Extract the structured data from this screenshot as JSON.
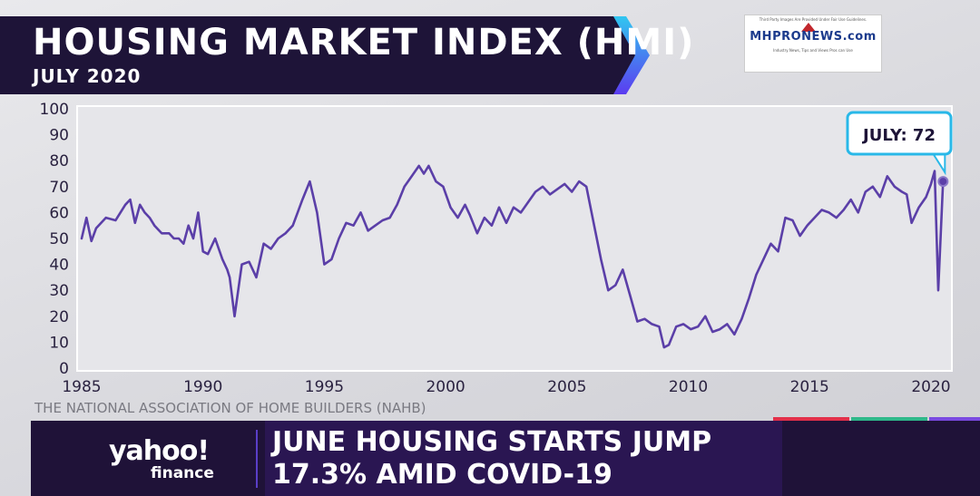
{
  "banner": {
    "title": "HOUSING MARKET INDEX (HMI)",
    "subtitle": "JULY 2020"
  },
  "watermark": {
    "fine_print": "Third Party Images Are Provided Under Fair Use Guidelines.",
    "logo_text": "MHPRONEWS.com",
    "tagline": "Industry News, Tips and Views Pros can Use"
  },
  "chart_data": {
    "type": "line",
    "title": "HOUSING MARKET INDEX (HMI)",
    "subtitle": "JULY 2020",
    "xlabel": "",
    "ylabel": "",
    "xlim": [
      1985,
      2020.6
    ],
    "ylim": [
      0,
      100
    ],
    "y_ticks": [
      0,
      10,
      20,
      30,
      40,
      50,
      60,
      70,
      80,
      90,
      100
    ],
    "x_ticks": [
      1985,
      1990,
      1995,
      2000,
      2005,
      2010,
      2015,
      2020
    ],
    "grid": false,
    "line_color": "#5b3fa8",
    "series": [
      {
        "x": [
          1985.0,
          1985.2,
          1985.4,
          1985.6,
          1986.0,
          1986.4,
          1986.8,
          1987.0,
          1987.2,
          1987.4,
          1987.6,
          1987.8,
          1988.0,
          1988.3,
          1988.6,
          1988.8,
          1989.0,
          1989.2,
          1989.4,
          1989.6,
          1989.8,
          1990.0,
          1990.2,
          1990.5,
          1990.8,
          1991.0,
          1991.1,
          1991.3,
          1991.6,
          1991.9,
          1992.2,
          1992.5,
          1992.8,
          1993.1,
          1993.4,
          1993.7,
          1993.9,
          1994.1,
          1994.4,
          1994.7,
          1995.0,
          1995.3,
          1995.6,
          1995.9,
          1996.2,
          1996.5,
          1996.8,
          1997.1,
          1997.4,
          1997.7,
          1998.0,
          1998.3,
          1998.6,
          1998.9,
          1999.1,
          1999.3,
          1999.6,
          1999.9,
          2000.2,
          2000.5,
          2000.8,
          2001.0,
          2001.3,
          2001.6,
          2001.9,
          2002.2,
          2002.5,
          2002.8,
          2003.1,
          2003.4,
          2003.7,
          2004.0,
          2004.3,
          2004.6,
          2004.9,
          2005.2,
          2005.5,
          2005.8,
          2006.1,
          2006.4,
          2006.7,
          2007.0,
          2007.3,
          2007.6,
          2007.9,
          2008.2,
          2008.5,
          2008.8,
          2009.0,
          2009.2,
          2009.5,
          2009.8,
          2010.1,
          2010.4,
          2010.7,
          2011.0,
          2011.3,
          2011.6,
          2011.9,
          2012.2,
          2012.5,
          2012.8,
          2013.1,
          2013.4,
          2013.7,
          2014.0,
          2014.3,
          2014.6,
          2014.9,
          2015.2,
          2015.5,
          2015.8,
          2016.1,
          2016.4,
          2016.7,
          2017.0,
          2017.3,
          2017.6,
          2017.9,
          2018.2,
          2018.5,
          2018.8,
          2019.0,
          2019.2,
          2019.5,
          2019.8,
          2020.0,
          2020.15,
          2020.3,
          2020.5
        ],
        "values": [
          50,
          58,
          49,
          54,
          58,
          57,
          63,
          65,
          56,
          63,
          60,
          58,
          55,
          52,
          52,
          50,
          50,
          48,
          55,
          50,
          60,
          45,
          44,
          50,
          42,
          38,
          35,
          20,
          40,
          41,
          35,
          48,
          46,
          50,
          52,
          55,
          60,
          65,
          72,
          60,
          40,
          42,
          50,
          56,
          55,
          60,
          53,
          55,
          57,
          58,
          63,
          70,
          74,
          78,
          75,
          78,
          72,
          70,
          62,
          58,
          63,
          59,
          52,
          58,
          55,
          62,
          56,
          62,
          60,
          64,
          68,
          70,
          67,
          69,
          71,
          68,
          72,
          70,
          56,
          42,
          30,
          32,
          38,
          28,
          18,
          19,
          17,
          16,
          8,
          9,
          16,
          17,
          15,
          16,
          20,
          14,
          15,
          17,
          13,
          19,
          27,
          36,
          42,
          48,
          45,
          58,
          57,
          51,
          55,
          58,
          61,
          60,
          58,
          61,
          65,
          60,
          68,
          70,
          66,
          74,
          70,
          68,
          67,
          56,
          62,
          66,
          71,
          76,
          30,
          72
        ]
      }
    ],
    "annotations": [
      {
        "text": "JULY: 72",
        "x": 2020.5,
        "y": 72
      }
    ]
  },
  "source": "THE NATIONAL ASSOCIATION OF HOME BUILDERS (NAHB)",
  "lower_third": {
    "logo": "yahoo!",
    "logo_sub": "finance",
    "headline_line1": "JUNE HOUSING STARTS JUMP",
    "headline_line2": "17.3% AMID COVID-19",
    "stripe_colors": [
      "#e2304a",
      "#2fb88a",
      "#7a4ae0"
    ]
  }
}
